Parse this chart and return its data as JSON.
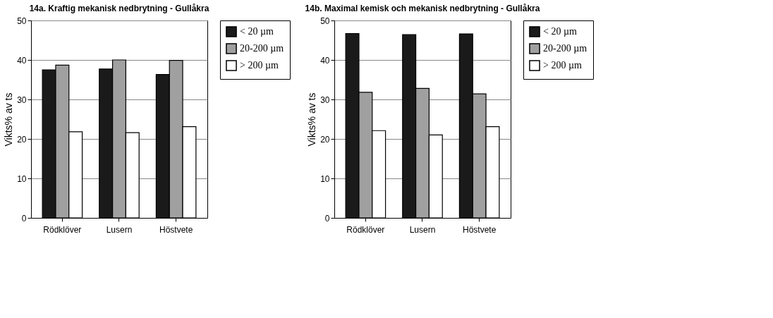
{
  "chart_data": [
    {
      "type": "bar",
      "title": "14a. Kraftig mekanisk nedbrytning - Gullåkra",
      "ylabel": "Vikts% av ts",
      "categories": [
        "Rödklöver",
        "Lusern",
        "Höstvete"
      ],
      "series": [
        {
          "name": "< 20 µm",
          "color": "#1a1a1a",
          "values": [
            37.5,
            37.7,
            36.3
          ]
        },
        {
          "name": "20-200 µm",
          "color": "#a0a0a0",
          "values": [
            38.7,
            40.0,
            39.9
          ]
        },
        {
          "name": "> 200 µm",
          "color": "#ffffff",
          "values": [
            21.8,
            21.6,
            23.1
          ]
        }
      ],
      "ylim": [
        0,
        50
      ],
      "yticks": [
        0,
        10,
        20,
        30,
        40,
        50
      ],
      "grid": "y",
      "legend": "right"
    },
    {
      "type": "bar",
      "title": "14b. Maximal kemisk och mekanisk nedbrytning - Gullåkra",
      "ylabel": "Vikts% av ts",
      "categories": [
        "Rödklöver",
        "Lusern",
        "Höstvete"
      ],
      "series": [
        {
          "name": "< 20 µm",
          "color": "#1a1a1a",
          "values": [
            46.7,
            46.4,
            46.6
          ]
        },
        {
          "name": "20-200 µm",
          "color": "#a0a0a0",
          "values": [
            31.8,
            32.8,
            31.4
          ]
        },
        {
          "name": "> 200 µm",
          "color": "#ffffff",
          "values": [
            22.1,
            21.0,
            23.1
          ]
        }
      ],
      "ylim": [
        0,
        50
      ],
      "yticks": [
        0,
        10,
        20,
        30,
        40,
        50
      ],
      "grid": "y",
      "legend": "right"
    }
  ]
}
